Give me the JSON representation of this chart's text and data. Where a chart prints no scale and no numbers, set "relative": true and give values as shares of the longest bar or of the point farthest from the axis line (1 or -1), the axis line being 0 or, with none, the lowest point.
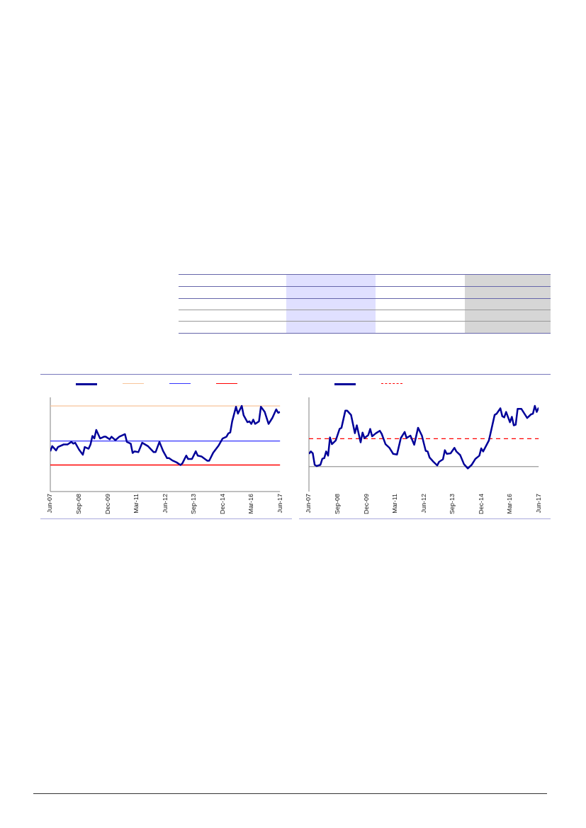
{
  "chart_data": [
    {
      "type": "line",
      "relative": true,
      "xlim": [
        "2007-06",
        "2017-06"
      ],
      "xticks": [
        {
          "value": "2007-06",
          "label": "Jun-07"
        },
        {
          "value": "2008-09",
          "label": "Sep-08"
        },
        {
          "value": "2009-12",
          "label": "Dec-09"
        },
        {
          "value": "2011-03",
          "label": "Mar-11"
        },
        {
          "value": "2012-06",
          "label": "Jun-12"
        },
        {
          "value": "2013-09",
          "label": "Sep-13"
        },
        {
          "value": "2014-12",
          "label": "Dec-14"
        },
        {
          "value": "2016-03",
          "label": "Mar-16"
        },
        {
          "value": "2017-06",
          "label": "Jun-17"
        }
      ],
      "series": [
        {
          "color": "#000099",
          "x": [
            "2007-06",
            "2007-07",
            "2007-09",
            "2007-10",
            "2008-01",
            "2008-03",
            "2008-05",
            "2008-06",
            "2008-07",
            "2008-09",
            "2008-11",
            "2008-12",
            "2009-02",
            "2009-03",
            "2009-04",
            "2009-05",
            "2009-06",
            "2009-08",
            "2009-10",
            "2009-11",
            "2010-01",
            "2010-02",
            "2010-04",
            "2010-06",
            "2010-09",
            "2010-10",
            "2010-12",
            "2011-01",
            "2011-02",
            "2011-04",
            "2011-06",
            "2011-09",
            "2011-12",
            "2012-01",
            "2012-03",
            "2012-05",
            "2012-07",
            "2012-08",
            "2012-10",
            "2012-12",
            "2013-02",
            "2013-03",
            "2013-05",
            "2013-06",
            "2013-08",
            "2013-10",
            "2013-11",
            "2014-01",
            "2014-04",
            "2014-05",
            "2014-07",
            "2014-10",
            "2014-12",
            "2015-02",
            "2015-03",
            "2015-04",
            "2015-05",
            "2015-07",
            "2015-08",
            "2015-10",
            "2015-11",
            "2016-01",
            "2016-02",
            "2016-03",
            "2016-04",
            "2016-05",
            "2016-07",
            "2016-08",
            "2016-10",
            "2016-12",
            "2017-02",
            "2017-04",
            "2017-05",
            "2017-06"
          ],
          "values": [
            0.47,
            0.53,
            0.48,
            0.52,
            0.55,
            0.55,
            0.58,
            0.56,
            0.57,
            0.49,
            0.43,
            0.52,
            0.5,
            0.55,
            0.65,
            0.62,
            0.72,
            0.62,
            0.64,
            0.64,
            0.61,
            0.64,
            0.6,
            0.64,
            0.67,
            0.58,
            0.56,
            0.45,
            0.47,
            0.46,
            0.57,
            0.53,
            0.46,
            0.46,
            0.58,
            0.47,
            0.39,
            0.39,
            0.36,
            0.34,
            0.31,
            0.33,
            0.42,
            0.38,
            0.38,
            0.47,
            0.42,
            0.41,
            0.36,
            0.36,
            0.45,
            0.54,
            0.62,
            0.64,
            0.68,
            0.69,
            0.82,
            0.99,
            0.91,
            1,
            0.89,
            0.81,
            0.82,
            0.79,
            0.84,
            0.79,
            0.82,
            0.99,
            0.93,
            0.79,
            0.86,
            0.96,
            0.92,
            0.93
          ]
        }
      ],
      "ref_lines": [
        {
          "axis": "y",
          "value": 1,
          "color": "#f8c49a"
        },
        {
          "axis": "y",
          "value": 0.59,
          "color": "#3333ff"
        },
        {
          "axis": "y",
          "value": 0.31,
          "color": "#ff0000"
        }
      ]
    },
    {
      "type": "line",
      "relative": true,
      "xlim": [
        "2007-06",
        "2017-06"
      ],
      "xticks": [
        {
          "value": "2007-06",
          "label": "Jun-07"
        },
        {
          "value": "2008-09",
          "label": "Sep-08"
        },
        {
          "value": "2009-12",
          "label": "Dec-09"
        },
        {
          "value": "2011-03",
          "label": "Mar-11"
        },
        {
          "value": "2012-06",
          "label": "Jun-12"
        },
        {
          "value": "2013-09",
          "label": "Sep-13"
        },
        {
          "value": "2014-12",
          "label": "Dec-14"
        },
        {
          "value": "2016-03",
          "label": "Mar-16"
        },
        {
          "value": "2017-06",
          "label": "Jun-17"
        }
      ],
      "series": [
        {
          "color": "#000099",
          "x": [
            "2007-06",
            "2007-07",
            "2007-08",
            "2007-09",
            "2007-10",
            "2007-12",
            "2008-01",
            "2008-02",
            "2008-03",
            "2008-04",
            "2008-05",
            "2008-06",
            "2008-08",
            "2008-10",
            "2008-11",
            "2009-01",
            "2009-02",
            "2009-04",
            "2009-06",
            "2009-07",
            "2009-09",
            "2009-10",
            "2009-11",
            "2010-01",
            "2010-02",
            "2010-03",
            "2010-05",
            "2010-07",
            "2010-08",
            "2010-10",
            "2010-12",
            "2011-02",
            "2011-04",
            "2011-06",
            "2011-08",
            "2011-09",
            "2011-11",
            "2012-01",
            "2012-03",
            "2012-05",
            "2012-07",
            "2012-08",
            "2012-09",
            "2012-11",
            "2013-01",
            "2013-02",
            "2013-04",
            "2013-05",
            "2013-06",
            "2013-08",
            "2013-10",
            "2013-11",
            "2014-01",
            "2014-03",
            "2014-05",
            "2014-07",
            "2014-09",
            "2014-11",
            "2014-12",
            "2015-01",
            "2015-04",
            "2015-07",
            "2015-08",
            "2015-10",
            "2015-11",
            "2015-12",
            "2016-01",
            "2016-03",
            "2016-04",
            "2016-05",
            "2016-06",
            "2016-07",
            "2016-09",
            "2016-12",
            "2017-02",
            "2017-03",
            "2017-04",
            "2017-05",
            "2017-06"
          ],
          "values": [
            0.21,
            0.25,
            0.22,
            0.03,
            0.01,
            0.03,
            0.13,
            0.14,
            0.25,
            0.18,
            0.48,
            0.37,
            0.43,
            0.62,
            0.64,
            0.92,
            0.92,
            0.85,
            0.55,
            0.68,
            0.4,
            0.56,
            0.47,
            0.52,
            0.62,
            0.5,
            0.55,
            0.59,
            0.54,
            0.37,
            0.31,
            0.21,
            0.2,
            0.47,
            0.57,
            0.47,
            0.51,
            0.36,
            0.64,
            0.51,
            0.26,
            0.25,
            0.15,
            0.08,
            0.02,
            0.08,
            0.12,
            0.27,
            0.21,
            0.22,
            0.31,
            0.25,
            0.19,
            0.04,
            -0.03,
            0.03,
            0.13,
            0.18,
            0.3,
            0.25,
            0.43,
            0.85,
            0.87,
            0.96,
            0.83,
            0.81,
            0.9,
            0.73,
            0.82,
            0.68,
            0.69,
            0.95,
            0.95,
            0.8,
            0.86,
            0.87,
            1,
            0.9,
            0.97
          ]
        }
      ],
      "ref_lines": [
        {
          "axis": "y",
          "value": 0.46,
          "color": "#ff0000",
          "line_style": "dashed"
        }
      ]
    }
  ]
}
